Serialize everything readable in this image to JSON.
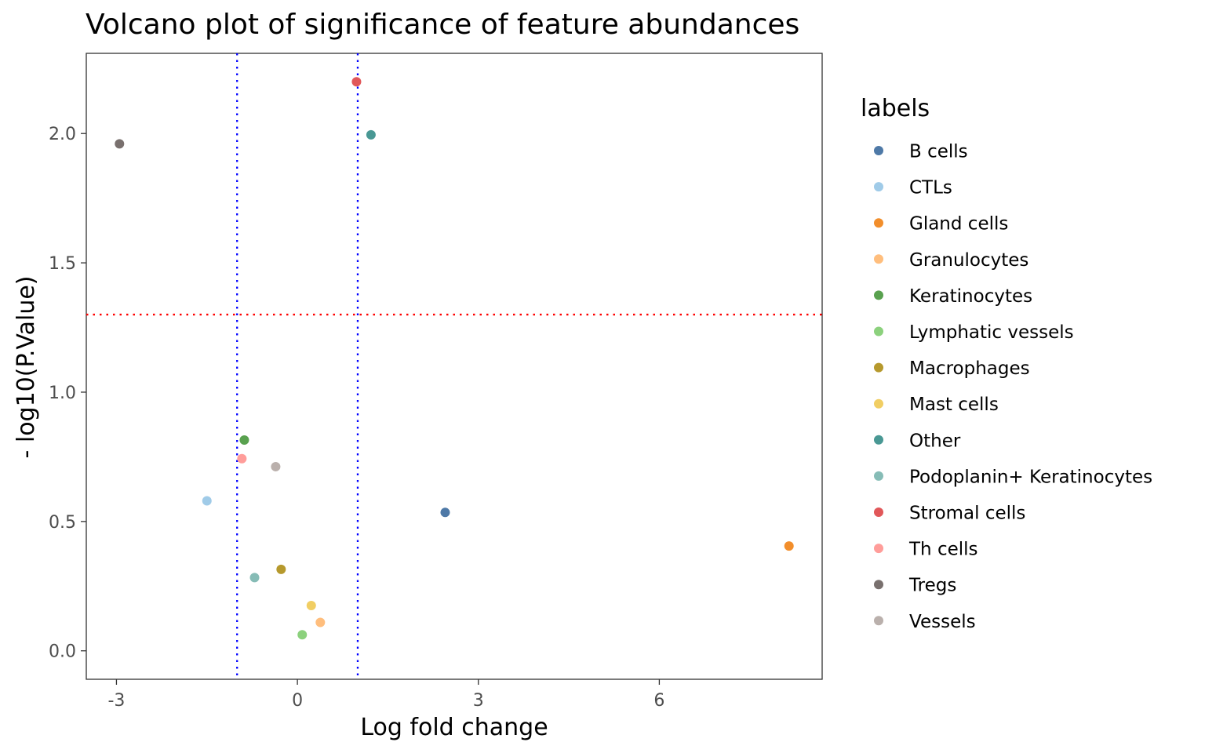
{
  "chart_data": {
    "type": "scatter",
    "title": "Volcano plot of significance of feature abundances",
    "xlabel": "Log fold change",
    "ylabel": "- log10(P.Value)",
    "xlim": [
      -3.5,
      8.7
    ],
    "ylim": [
      -0.11,
      2.31
    ],
    "x_ticks": [
      -3,
      0,
      3,
      6
    ],
    "x_tick_labels": [
      "-3",
      "0",
      "3",
      "6"
    ],
    "y_ticks": [
      0.0,
      0.5,
      1.0,
      1.5,
      2.0
    ],
    "y_tick_labels": [
      "0.0",
      "0.5",
      "1.0",
      "1.5",
      "2.0"
    ],
    "grid": false,
    "reference_lines": [
      {
        "orientation": "horizontal",
        "value": 1.3,
        "color": "#ff0000",
        "style": "dotted"
      },
      {
        "orientation": "vertical",
        "value": -1,
        "color": "#0000ff",
        "style": "dotted"
      },
      {
        "orientation": "vertical",
        "value": 1,
        "color": "#0000ff",
        "style": "dotted"
      }
    ],
    "legend": {
      "title": "labels",
      "position": "right"
    },
    "series": [
      {
        "name": "B cells",
        "color": "#4e79a7",
        "x": 2.45,
        "y": 0.535
      },
      {
        "name": "CTLs",
        "color": "#a0cbe8",
        "x": -1.5,
        "y": 0.58
      },
      {
        "name": "Gland cells",
        "color": "#f28e2b",
        "x": 8.15,
        "y": 0.405
      },
      {
        "name": "Granulocytes",
        "color": "#ffbe7d",
        "x": 0.38,
        "y": 0.11
      },
      {
        "name": "Keratinocytes",
        "color": "#59a14f",
        "x": -0.88,
        "y": 0.815
      },
      {
        "name": "Lymphatic vessels",
        "color": "#8cd17d",
        "x": 0.08,
        "y": 0.062
      },
      {
        "name": "Macrophages",
        "color": "#b6992d",
        "x": -0.27,
        "y": 0.315
      },
      {
        "name": "Mast cells",
        "color": "#f1ce63",
        "x": 0.23,
        "y": 0.175
      },
      {
        "name": "Other",
        "color": "#499894",
        "x": 1.22,
        "y": 1.995
      },
      {
        "name": "Podoplanin+ Keratinocytes",
        "color": "#86bcb6",
        "x": -0.71,
        "y": 0.283
      },
      {
        "name": "Stromal cells",
        "color": "#e15759",
        "x": 0.98,
        "y": 2.2
      },
      {
        "name": "Th cells",
        "color": "#ff9d9a",
        "x": -0.92,
        "y": 0.743
      },
      {
        "name": "Tregs",
        "color": "#79706e",
        "x": -2.95,
        "y": 1.96
      },
      {
        "name": "Vessels",
        "color": "#bab0ac",
        "x": -0.36,
        "y": 0.712
      }
    ]
  }
}
